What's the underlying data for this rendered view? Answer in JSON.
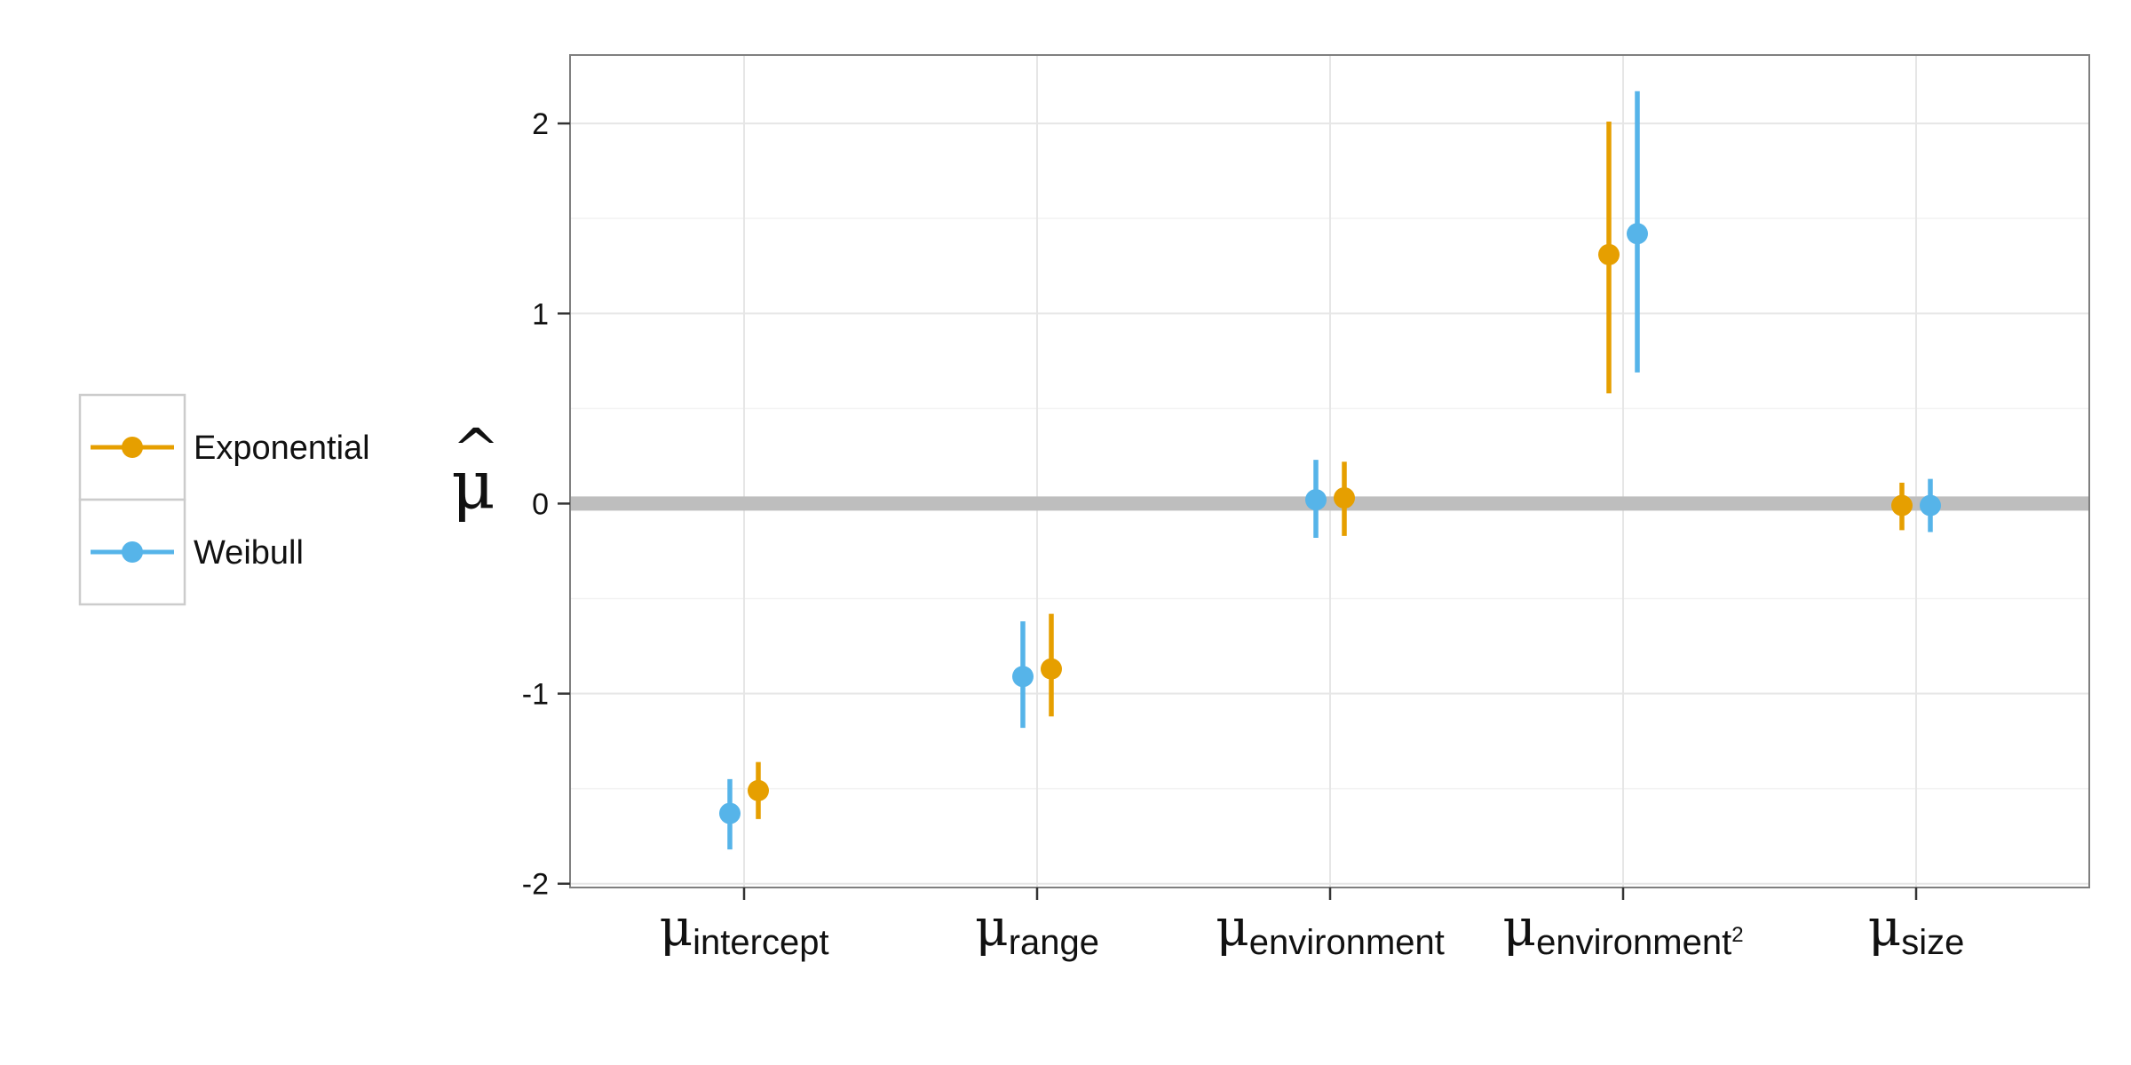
{
  "chart_data": {
    "type": "scatter",
    "title": "",
    "xlabel": "",
    "ylabel": "μ̂",
    "ylabel_base": "μ",
    "ylabel_accent": "^",
    "ylim": [
      -2.02,
      2.36
    ],
    "yticks": [
      -2,
      -1,
      0,
      1,
      2
    ],
    "ytick_labels": [
      "-2",
      "-1",
      "0",
      "1",
      "2"
    ],
    "grid": true,
    "legend_position": "left",
    "reference_line": {
      "y": 0,
      "color": "#BEBEBE"
    },
    "categories": [
      {
        "key": "intercept",
        "base": "μ",
        "sub": "intercept",
        "sup": ""
      },
      {
        "key": "range",
        "base": "μ",
        "sub": "range",
        "sup": ""
      },
      {
        "key": "environment",
        "base": "μ",
        "sub": "environment",
        "sup": ""
      },
      {
        "key": "environment2",
        "base": "μ",
        "sub": "environment",
        "sup": "2"
      },
      {
        "key": "size",
        "base": "μ",
        "sub": "size",
        "sup": ""
      }
    ],
    "series": [
      {
        "name": "Exponential",
        "color": "#E69F00",
        "points": [
          {
            "category": 0,
            "y": -1.51,
            "low": -1.66,
            "high": -1.36
          },
          {
            "category": 1,
            "y": -0.87,
            "low": -1.12,
            "high": -0.58
          },
          {
            "category": 2,
            "y": 0.03,
            "low": -0.17,
            "high": 0.22
          },
          {
            "category": 3,
            "y": 1.31,
            "low": 0.58,
            "high": 2.01
          },
          {
            "category": 4,
            "y": -0.01,
            "low": -0.14,
            "high": 0.11
          }
        ]
      },
      {
        "name": "Weibull",
        "color": "#56B4E9",
        "points": [
          {
            "category": 0,
            "y": -1.63,
            "low": -1.82,
            "high": -1.45
          },
          {
            "category": 1,
            "y": -0.91,
            "low": -1.18,
            "high": -0.62
          },
          {
            "category": 2,
            "y": 0.02,
            "low": -0.18,
            "high": 0.23
          },
          {
            "category": 3,
            "y": 1.42,
            "low": 0.69,
            "high": 2.17
          },
          {
            "category": 4,
            "y": -0.01,
            "low": -0.15,
            "high": 0.13
          }
        ]
      }
    ]
  }
}
